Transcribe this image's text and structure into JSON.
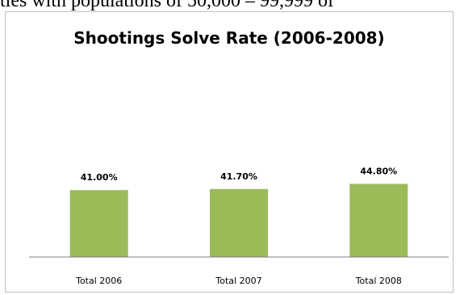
{
  "context": {
    "partial_text": "ties with populations of 50,000 – 99,999 of"
  },
  "colors": {
    "bar": "#9bbb59",
    "axis": "#7f7f7f",
    "frame": "#bfbfbf"
  },
  "chart_data": {
    "type": "bar",
    "title": "Shootings Solve Rate (2006-2008)",
    "categories": [
      "Total 2006",
      "Total 2007",
      "Total 2008"
    ],
    "values": [
      41.0,
      41.7,
      44.8
    ],
    "data_labels": [
      "41.00%",
      "41.70%",
      "44.80%"
    ],
    "ylim": [
      0,
      100
    ],
    "value_unit": "%",
    "grid": false,
    "legend": "none",
    "xlabel": "",
    "ylabel": ""
  }
}
